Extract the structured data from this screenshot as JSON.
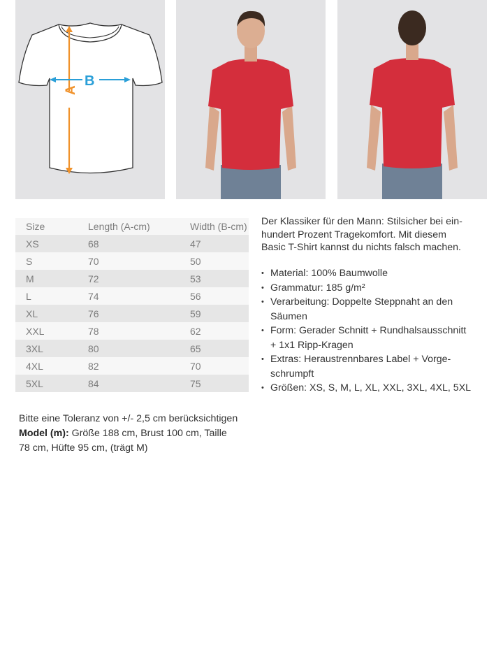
{
  "diagram": {
    "label_a": "A",
    "label_b": "B",
    "color_a": "#f0922b",
    "color_b": "#2a9fd8"
  },
  "photos": [
    {
      "view": "front",
      "shirt_color": "#d42e3c"
    },
    {
      "view": "back",
      "shirt_color": "#d42e3c"
    }
  ],
  "size_table": {
    "headers": [
      "Size",
      "Length (A-cm)",
      "Width (B-cm)"
    ],
    "rows": [
      [
        "XS",
        "68",
        "47"
      ],
      [
        "S",
        "70",
        "50"
      ],
      [
        "M",
        "72",
        "53"
      ],
      [
        "L",
        "74",
        "56"
      ],
      [
        "XL",
        "76",
        "59"
      ],
      [
        "XXL",
        "78",
        "62"
      ],
      [
        "3XL",
        "80",
        "65"
      ],
      [
        "4XL",
        "82",
        "70"
      ],
      [
        "5XL",
        "84",
        "75"
      ]
    ]
  },
  "description_lines": [
    "Der Klassiker für den Mann: Stilsicher bei ein-",
    "hundert Prozent Tragekomfort. Mit diesem",
    "Basic T-Shirt kannst du nichts falsch machen."
  ],
  "bullets": [
    [
      "Material: 100% Baumwolle"
    ],
    [
      "Grammatur: 185 g/m²"
    ],
    [
      "Verarbeitung: Doppelte Steppnaht an den",
      "Säumen"
    ],
    [
      "Form: Gerader Schnitt + Rundhalsausschnitt",
      "+ 1x1 Ripp-Kragen"
    ],
    [
      "Extras: Heraustrennbares Label + Vorge-",
      "schrumpft"
    ],
    [
      "Größen: XS, S, M, L, XL, XXL, 3XL, 4XL, 5XL"
    ]
  ],
  "note": {
    "tolerance": "Bitte eine Toleranz von +/- 2,5 cm berücksichtigen",
    "model_label": "Model (m):",
    "model_line1": " Größe 188 cm, Brust 100 cm, Taille",
    "model_line2": "78 cm, Hüfte 95 cm, (trägt M)"
  }
}
